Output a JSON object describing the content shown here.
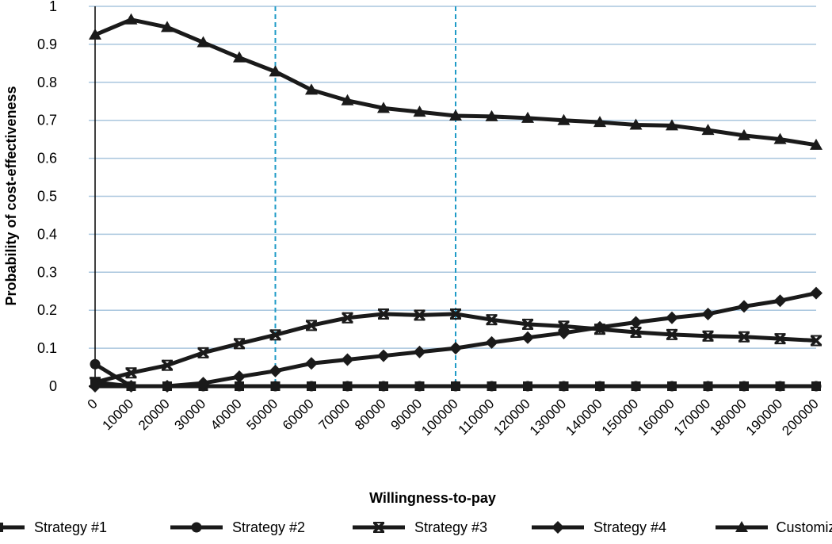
{
  "chart_data": {
    "type": "line",
    "title": "",
    "xlabel": "Willingness-to-pay",
    "ylabel": "Probability of cost-effectiveness",
    "ylim": [
      0,
      1
    ],
    "yticks": [
      "0",
      "0.1",
      "0.2",
      "0.3",
      "0.4",
      "0.5",
      "0.6",
      "0.7",
      "0.8",
      "0.9",
      "1"
    ],
    "categories": [
      "0",
      "10000",
      "20000",
      "30000",
      "40000",
      "50000",
      "60000",
      "70000",
      "80000",
      "90000",
      "100000",
      "110000",
      "120000",
      "130000",
      "140000",
      "150000",
      "160000",
      "170000",
      "180000",
      "190000",
      "200000"
    ],
    "grid": "horizontal",
    "reference_lines_at": [
      "50000",
      "100000"
    ],
    "legend_position": "bottom",
    "series": [
      {
        "name": "Strategy #1",
        "marker": "square",
        "values": [
          0.01,
          0,
          0,
          0,
          0,
          0,
          0,
          0,
          0,
          0,
          0,
          0,
          0,
          0,
          0,
          0,
          0,
          0,
          0,
          0,
          0
        ]
      },
      {
        "name": "Strategy #2",
        "marker": "circle",
        "values": [
          0.058,
          0,
          0,
          0,
          0,
          0,
          0,
          0,
          0,
          0,
          0,
          0,
          0,
          0,
          0,
          0,
          0,
          0,
          0,
          0,
          0
        ]
      },
      {
        "name": "Strategy #3",
        "marker": "x-bar",
        "values": [
          0.01,
          0.035,
          0.055,
          0.088,
          0.112,
          0.135,
          0.16,
          0.18,
          0.19,
          0.187,
          0.19,
          0.175,
          0.163,
          0.158,
          0.15,
          0.142,
          0.136,
          0.132,
          0.13,
          0.125,
          0.12
        ]
      },
      {
        "name": "Strategy #4",
        "marker": "diamond",
        "values": [
          0,
          0,
          0,
          0.008,
          0.025,
          0.04,
          0.06,
          0.07,
          0.08,
          0.09,
          0.1,
          0.115,
          0.128,
          0.14,
          0.155,
          0.168,
          0.18,
          0.19,
          0.21,
          0.225,
          0.245
        ]
      },
      {
        "name": "Customized",
        "marker": "triangle",
        "values": [
          0.925,
          0.965,
          0.945,
          0.905,
          0.865,
          0.828,
          0.78,
          0.752,
          0.732,
          0.722,
          0.712,
          0.71,
          0.706,
          0.7,
          0.695,
          0.688,
          0.686,
          0.674,
          0.66,
          0.65,
          0.635
        ]
      }
    ],
    "colors": {
      "series": "#1a1a1a",
      "grid": "#a9c6de",
      "reference": "#1f9bc7"
    }
  }
}
